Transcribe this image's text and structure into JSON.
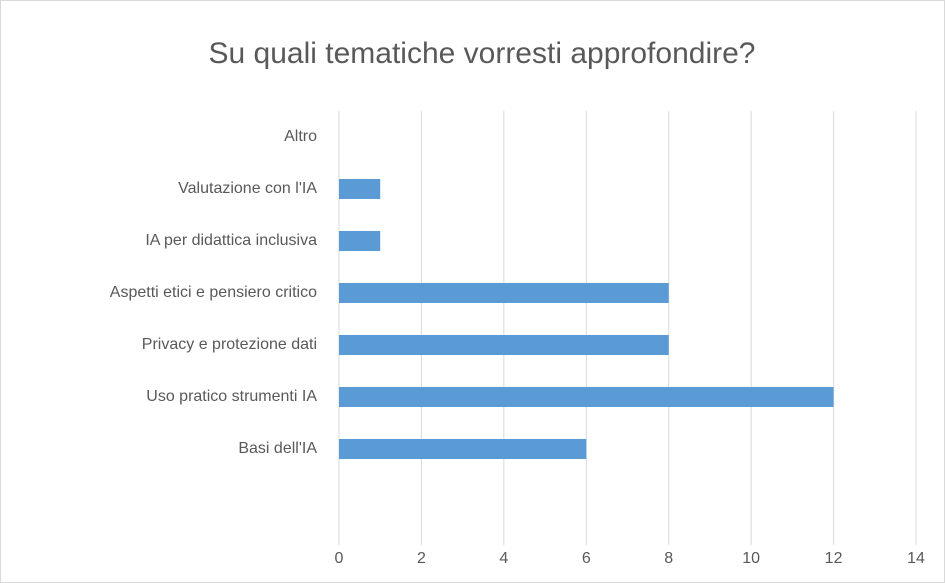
{
  "chart_data": {
    "type": "bar",
    "orientation": "horizontal",
    "title": "Su quali tematiche vorresti approfondire?",
    "categories": [
      "Basi dell'IA",
      "Uso pratico strumenti IA",
      "Privacy e protezione dati",
      "Aspetti etici e pensiero critico",
      "IA per didattica inclusiva",
      "Valutazione con l'IA",
      "Altro"
    ],
    "values": [
      6,
      12,
      8,
      8,
      1,
      1,
      0
    ],
    "color": "#5b9bd5",
    "xlim": [
      0,
      14
    ],
    "xticks": [
      0,
      2,
      4,
      6,
      8,
      10,
      12,
      14
    ],
    "grid": true
  }
}
